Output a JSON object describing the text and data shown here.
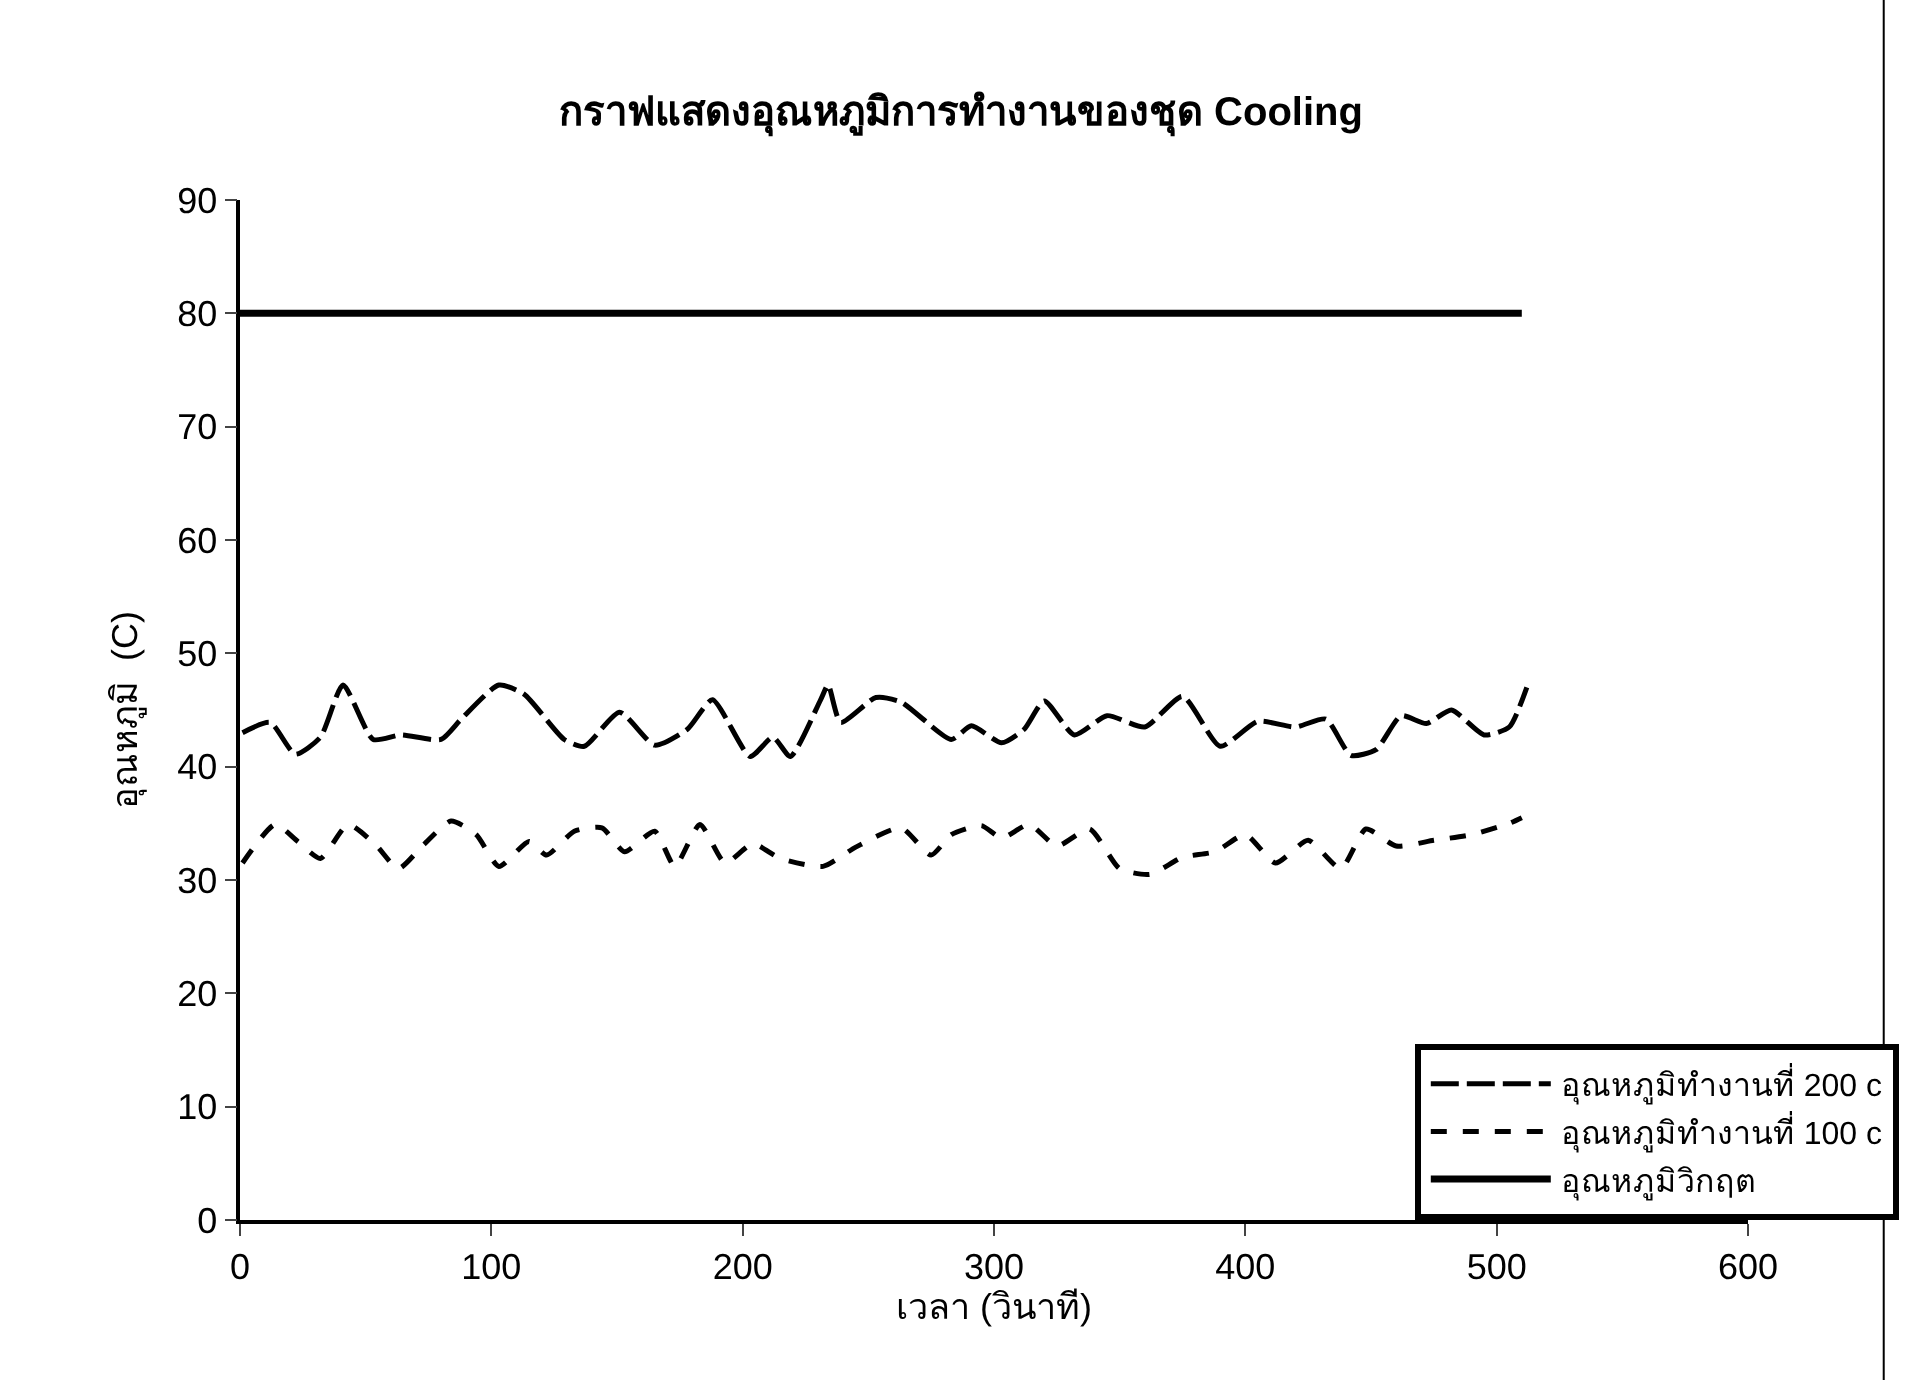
{
  "chart_data": {
    "type": "line",
    "title": "กราฟแสดงอุณหภูมิการทำงานของชุด Cooling",
    "xlabel": "เวลา (วินาที)",
    "ylabel": "อุณหภูมิ  (C)",
    "xlim": [
      0,
      600
    ],
    "xticks": [
      0,
      100,
      200,
      300,
      400,
      500,
      600
    ],
    "ylim": [
      0,
      90
    ],
    "yticks": [
      0,
      10,
      20,
      30,
      40,
      50,
      60,
      70,
      80,
      90
    ],
    "grid": false,
    "legend": "bottom right",
    "marker": "none",
    "series": [
      {
        "name": "อุณหภูมิทำงานที่ 200 c",
        "color": "#000000",
        "line_style": "dashed",
        "x": [
          1,
          12,
          22,
          32,
          41,
          53,
          64,
          80,
          88,
          103,
          113,
          129,
          137,
          151,
          165,
          178,
          188,
          203,
          212,
          219,
          231,
          234,
          239,
          253,
          263,
          283,
          291,
          303,
          312,
          320,
          332,
          345,
          360,
          375,
          390,
          405,
          420,
          432,
          442,
          452,
          462,
          472,
          482,
          495,
          505,
          512
        ],
        "values": [
          43.0,
          43.9,
          41.1,
          42.6,
          47.2,
          42.4,
          42.8,
          42.4,
          44.2,
          47.2,
          46.4,
          42.4,
          41.8,
          44.8,
          41.9,
          43.3,
          45.9,
          40.9,
          42.6,
          40.9,
          45.9,
          47.2,
          43.9,
          46.1,
          45.7,
          42.4,
          43.6,
          42.1,
          43.3,
          45.8,
          42.8,
          44.5,
          43.5,
          46.2,
          41.8,
          44.0,
          43.5,
          44.2,
          41.0,
          41.5,
          44.5,
          43.8,
          45.0,
          42.8,
          43.5,
          47.0
        ]
      },
      {
        "name": "อุณหภูมิทำงานที่ 100 c",
        "color": "#000000",
        "line_style": "dotted",
        "x": [
          1,
          14,
          23,
          32,
          43,
          54,
          63,
          73,
          84,
          94,
          103,
          115,
          122,
          133,
          144,
          153,
          165,
          173,
          183,
          193,
          204,
          215,
          232,
          245,
          263,
          275,
          283,
          295,
          303,
          314,
          325,
          338,
          350,
          362,
          375,
          388,
          400,
          412,
          425,
          438,
          448,
          460,
          475,
          490,
          505,
          510
        ],
        "values": [
          31.5,
          34.9,
          33.4,
          31.9,
          34.9,
          33.1,
          31.0,
          33.1,
          35.2,
          34.0,
          31.2,
          33.4,
          32.2,
          34.3,
          34.6,
          32.5,
          34.3,
          31.2,
          34.9,
          31.5,
          33.2,
          31.9,
          31.2,
          32.9,
          34.6,
          32.2,
          34.0,
          34.8,
          33.7,
          34.9,
          33.0,
          34.5,
          31.0,
          30.5,
          32.0,
          32.5,
          34.0,
          31.5,
          33.5,
          31.0,
          34.5,
          33.0,
          33.5,
          34.0,
          35.0,
          35.5
        ]
      },
      {
        "name": "อุณหภูมิวิกฤต",
        "color": "#000000",
        "line_style": "solid",
        "x": [
          0,
          510
        ],
        "values": [
          80,
          80
        ]
      }
    ]
  }
}
